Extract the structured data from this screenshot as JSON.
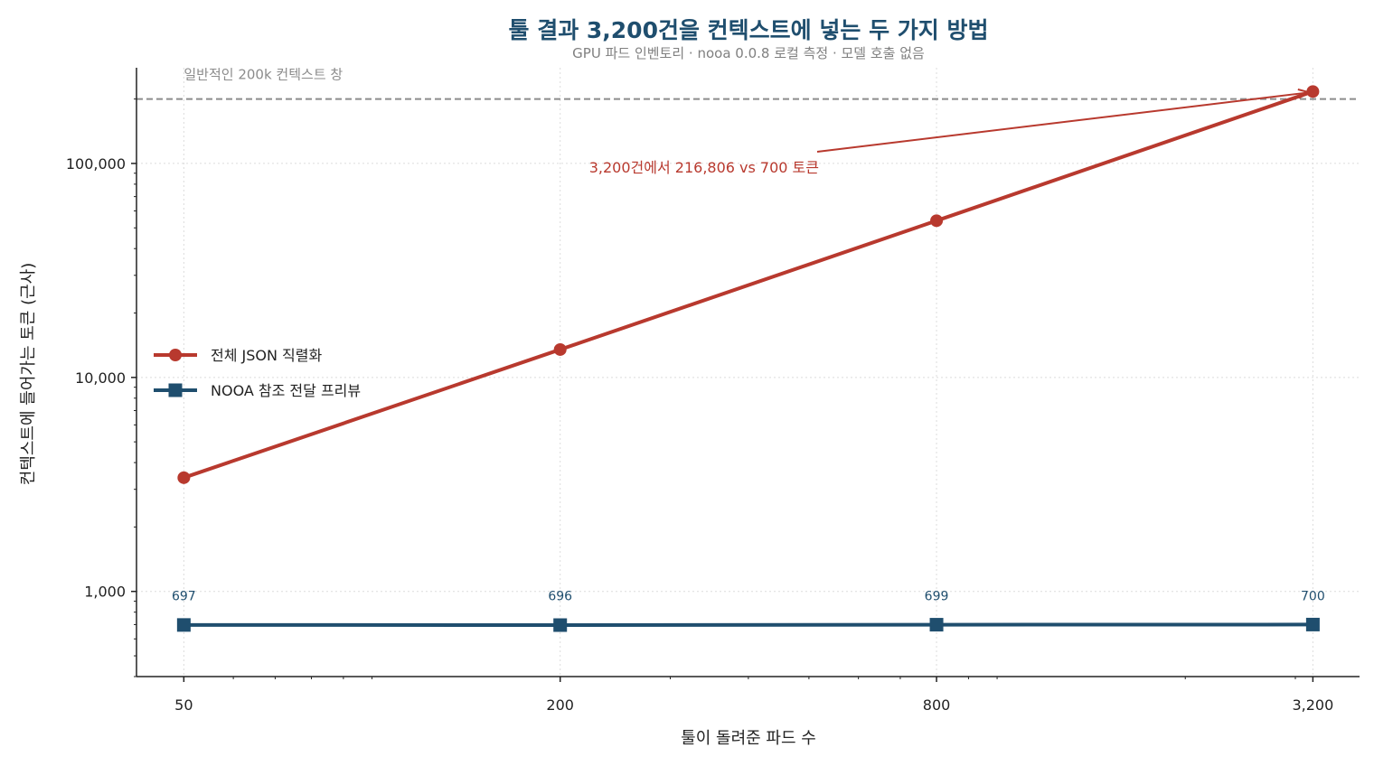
{
  "colors": {
    "full_json": "#b8392e",
    "nooa": "#1f4e6e",
    "reference": "#8c8c8c",
    "grid": "#dcdcdc",
    "title": "#1f4e6e"
  },
  "chart_data": {
    "type": "line",
    "title": "툴 결과 3,200건을 컨텍스트에 넣는 두 가지 방법",
    "subtitle": "GPU 파드 인벤토리 · nooa 0.0.8 로컬 측정 · 모델 호출 없음",
    "xlabel": "툴이 돌려준 파드 수",
    "ylabel": "컨텍스트에 들어가는 토큰 (근사)",
    "x_scale": "log",
    "y_scale": "log",
    "x": [
      50,
      200,
      800,
      3200
    ],
    "x_tick_labels": [
      "50",
      "200",
      "800",
      "3,200"
    ],
    "y_ticks": [
      1000,
      10000,
      100000
    ],
    "y_tick_labels": [
      "1,000",
      "10,000",
      "100,000"
    ],
    "xlim": [
      42,
      3800
    ],
    "ylim": [
      400,
      280000
    ],
    "grid": true,
    "legend_position": "center-left",
    "series": [
      {
        "name": "전체 JSON 직렬화",
        "values": [
          3400,
          13500,
          54000,
          216806
        ],
        "marker": "circle",
        "color": "#b8392e"
      },
      {
        "name": "NOOA 참조 전달 프리뷰",
        "values": [
          697,
          696,
          699,
          700
        ],
        "marker": "square",
        "color": "#1f4e6e",
        "data_labels": [
          "697",
          "696",
          "699",
          "700"
        ]
      }
    ],
    "reference_line": {
      "y": 200000,
      "label": "일반적인 200k 컨텍스트 창"
    },
    "annotation": {
      "text": "3,200건에서 216,806 vs 700 토큰",
      "x": 3200,
      "y": 216806
    }
  }
}
